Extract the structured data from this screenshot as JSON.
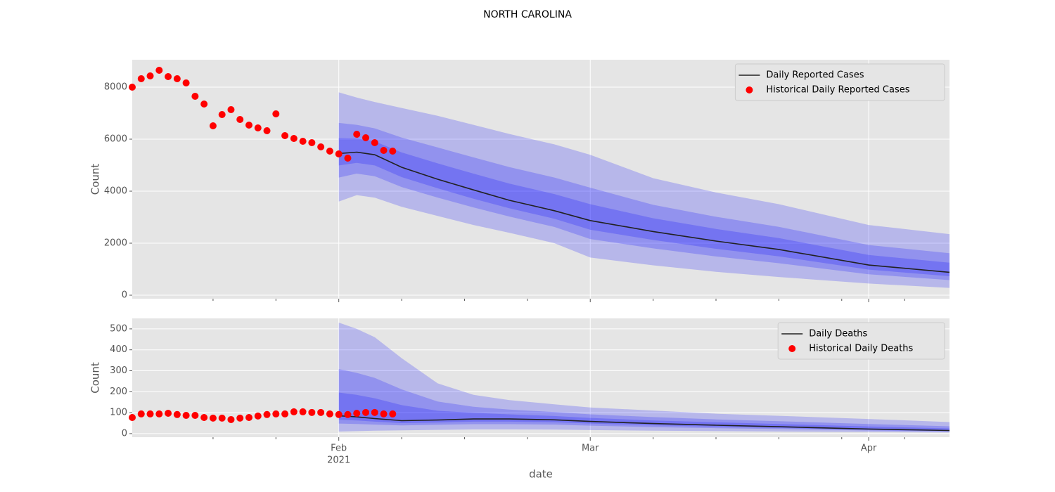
{
  "title": "NORTH CAROLINA",
  "chart_data": [
    {
      "type": "forecast",
      "ylabel": "Count",
      "ylim": [
        -135,
        9054
      ],
      "yticks": [
        0,
        2000,
        4000,
        6000,
        8000
      ],
      "xlim": [
        "2021-01-09",
        "2021-04-10"
      ],
      "xticks": [
        "2021-02-01",
        "2021-03-01",
        "2021-04-01"
      ],
      "xminorticks": [
        "2021-01-18",
        "2021-01-25",
        "2021-02-08",
        "2021-02-15",
        "2021-02-22",
        "2021-03-08",
        "2021-03-15",
        "2021-03-22",
        "2021-03-29",
        "2021-04-05"
      ],
      "grid": true,
      "legend": "upper right",
      "series": [
        {
          "name": "Daily Reported Cases",
          "kind": "line",
          "color": "#222222",
          "band_color": "#0000ff",
          "x": [
            "2021-02-01",
            "2021-02-03",
            "2021-02-05",
            "2021-02-08",
            "2021-02-12",
            "2021-02-16",
            "2021-02-20",
            "2021-02-25",
            "2021-03-01",
            "2021-03-08",
            "2021-03-15",
            "2021-03-22",
            "2021-04-01",
            "2021-04-10"
          ],
          "values": [
            5450,
            5500,
            5400,
            4920,
            4460,
            4050,
            3650,
            3250,
            2870,
            2450,
            2080,
            1760,
            1160,
            880
          ],
          "bands": [
            {
              "lower": [
                3600,
                3850,
                3750,
                3400,
                3050,
                2700,
                2400,
                2000,
                1450,
                1150,
                900,
                700,
                450,
                280
              ],
              "upper": [
                7800,
                7600,
                7430,
                7200,
                6900,
                6550,
                6200,
                5800,
                5400,
                4500,
                3950,
                3500,
                2700,
                2350
              ]
            },
            {
              "lower": [
                4525,
                4675,
                4575,
                4160,
                3755,
                3375,
                3025,
                2625,
                2160,
                1800,
                1490,
                1230,
                805,
                580
              ],
              "upper": [
                6625,
                6550,
                6415,
                6060,
                5680,
                5300,
                4925,
                4525,
                4135,
                3475,
                3015,
                2630,
                1930,
                1615
              ]
            },
            {
              "lower": [
                4990,
                5090,
                4990,
                4540,
                4110,
                3710,
                3340,
                2940,
                2515,
                2125,
                1785,
                1495,
                985,
                730
              ],
              "upper": [
                6040,
                6025,
                5910,
                5490,
                5070,
                4675,
                4290,
                3890,
                3500,
                2960,
                2550,
                2195,
                1545,
                1250
              ]
            }
          ]
        },
        {
          "name": "Historical Daily Reported Cases",
          "kind": "scatter",
          "color": "#ff0000",
          "x": [
            "2021-01-09",
            "2021-01-10",
            "2021-01-11",
            "2021-01-12",
            "2021-01-13",
            "2021-01-14",
            "2021-01-15",
            "2021-01-16",
            "2021-01-17",
            "2021-01-18",
            "2021-01-19",
            "2021-01-20",
            "2021-01-21",
            "2021-01-22",
            "2021-01-23",
            "2021-01-24",
            "2021-01-25",
            "2021-01-26",
            "2021-01-27",
            "2021-01-28",
            "2021-01-29",
            "2021-01-30",
            "2021-01-31",
            "2021-02-01",
            "2021-02-02",
            "2021-02-03",
            "2021-02-04",
            "2021-02-05",
            "2021-02-06",
            "2021-02-07"
          ],
          "values": [
            8000,
            8324,
            8432,
            8649,
            8405,
            8324,
            8162,
            7649,
            7351,
            6514,
            6946,
            7135,
            6757,
            6541,
            6432,
            6324,
            6973,
            6135,
            6027,
            5919,
            5865,
            5703,
            5541,
            5432,
            5270,
            6189,
            6054,
            5865,
            5568,
            5541
          ]
        }
      ]
    },
    {
      "type": "forecast",
      "ylabel": "Count",
      "xlabel": "date",
      "x_year": "2021",
      "ylim": [
        -17,
        550
      ],
      "yticks": [
        0,
        100,
        200,
        300,
        400,
        500
      ],
      "xlim": [
        "2021-01-09",
        "2021-04-10"
      ],
      "xticks": [
        {
          "value": "2021-02-01",
          "label": "Feb"
        },
        {
          "value": "2021-03-01",
          "label": "Mar"
        },
        {
          "value": "2021-04-01",
          "label": "Apr"
        }
      ],
      "xminorticks": [
        "2021-01-18",
        "2021-01-25",
        "2021-02-08",
        "2021-02-15",
        "2021-02-22",
        "2021-03-08",
        "2021-03-15",
        "2021-03-22",
        "2021-03-29",
        "2021-04-05"
      ],
      "grid": true,
      "legend": "upper right",
      "series": [
        {
          "name": "Daily Deaths",
          "kind": "line",
          "color": "#222222",
          "band_color": "#0000ff",
          "x": [
            "2021-02-01",
            "2021-02-03",
            "2021-02-05",
            "2021-02-08",
            "2021-02-12",
            "2021-02-16",
            "2021-02-20",
            "2021-02-25",
            "2021-03-01",
            "2021-03-08",
            "2021-03-15",
            "2021-03-22",
            "2021-04-01",
            "2021-04-10"
          ],
          "values": [
            85,
            80,
            72,
            62,
            65,
            70,
            70,
            66,
            58,
            48,
            40,
            33,
            22,
            15
          ],
          "bands": [
            {
              "lower": [
                10,
                12,
                14,
                16,
                18,
                20,
                20,
                19,
                17,
                14,
                12,
                10,
                7,
                5
              ],
              "upper": [
                530,
                500,
                460,
                360,
                240,
                185,
                160,
                140,
                125,
                110,
                95,
                85,
                70,
                55
              ]
            },
            {
              "lower": [
                48,
                46,
                43,
                39,
                42,
                45,
                45,
                43,
                38,
                31,
                26,
                22,
                15,
                10
              ],
              "upper": [
                308,
                290,
                266,
                211,
                153,
                128,
                115,
                103,
                92,
                79,
                68,
                59,
                46,
                35
              ]
            },
            {
              "lower": [
                66,
                63,
                57,
                50,
                53,
                57,
                57,
                54,
                48,
                40,
                33,
                27,
                18,
                12
              ],
              "upper": [
                196,
                185,
                169,
                136,
                109,
                99,
                92,
                84,
                75,
                63,
                54,
                46,
                34,
                25
              ]
            }
          ]
        },
        {
          "name": "Historical Daily Deaths",
          "kind": "scatter",
          "color": "#ff0000",
          "x": [
            "2021-01-09",
            "2021-01-10",
            "2021-01-11",
            "2021-01-12",
            "2021-01-13",
            "2021-01-14",
            "2021-01-15",
            "2021-01-16",
            "2021-01-17",
            "2021-01-18",
            "2021-01-19",
            "2021-01-20",
            "2021-01-21",
            "2021-01-22",
            "2021-01-23",
            "2021-01-24",
            "2021-01-25",
            "2021-01-26",
            "2021-01-27",
            "2021-01-28",
            "2021-01-29",
            "2021-01-30",
            "2021-01-31",
            "2021-02-01",
            "2021-02-02",
            "2021-02-03",
            "2021-02-04",
            "2021-02-05",
            "2021-02-06",
            "2021-02-07"
          ],
          "values": [
            77,
            94,
            94,
            94,
            97,
            91,
            87,
            87,
            77,
            74,
            74,
            67,
            74,
            77,
            84,
            91,
            94,
            94,
            104,
            104,
            101,
            101,
            94,
            91,
            91,
            97,
            101,
            101,
            94,
            94
          ]
        }
      ]
    }
  ]
}
